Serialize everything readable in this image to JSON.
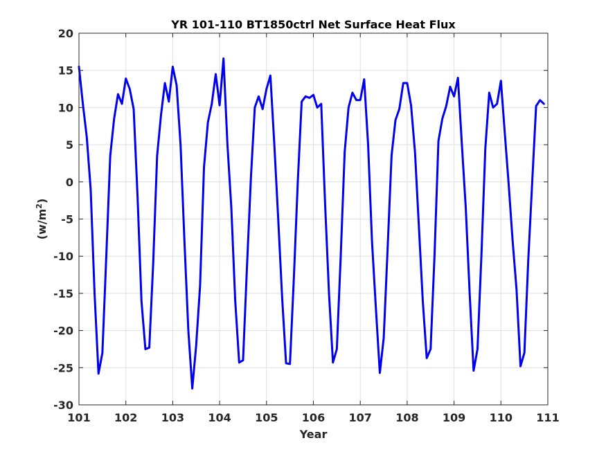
{
  "chart_data": {
    "type": "line",
    "title": "YR 101-110 BT1850ctrl Net Surface Heat Flux",
    "xlabel": "Year",
    "ylabel": "(w/m",
    "ylabel_sup": "2",
    "ylabel_close": ")",
    "xlim": [
      101,
      111
    ],
    "ylim": [
      -30,
      20
    ],
    "xticks": [
      "101",
      "102",
      "103",
      "104",
      "105",
      "106",
      "107",
      "108",
      "109",
      "110",
      "111"
    ],
    "yticks": [
      "20",
      "15",
      "10",
      "5",
      "0",
      "-5",
      "-10",
      "-15",
      "-20",
      "-25",
      "-30"
    ],
    "grid": true,
    "series": [
      {
        "color": "#0000ee",
        "x": [
          101.0,
          101.083,
          101.167,
          101.25,
          101.333,
          101.417,
          101.5,
          101.583,
          101.667,
          101.75,
          101.833,
          101.917,
          102.0,
          102.083,
          102.167,
          102.25,
          102.333,
          102.417,
          102.5,
          102.583,
          102.667,
          102.75,
          102.833,
          102.917,
          103.0,
          103.083,
          103.167,
          103.25,
          103.333,
          103.417,
          103.5,
          103.583,
          103.667,
          103.75,
          103.833,
          103.917,
          104.0,
          104.083,
          104.167,
          104.25,
          104.333,
          104.417,
          104.5,
          104.583,
          104.667,
          104.75,
          104.833,
          104.917,
          105.0,
          105.083,
          105.167,
          105.25,
          105.333,
          105.417,
          105.5,
          105.583,
          105.667,
          105.75,
          105.833,
          105.917,
          106.0,
          106.083,
          106.167,
          106.25,
          106.333,
          106.417,
          106.5,
          106.583,
          106.667,
          106.75,
          106.833,
          106.917,
          107.0,
          107.083,
          107.167,
          107.25,
          107.333,
          107.417,
          107.5,
          107.583,
          107.667,
          107.75,
          107.833,
          107.917,
          108.0,
          108.083,
          108.167,
          108.25,
          108.333,
          108.417,
          108.5,
          108.583,
          108.667,
          108.75,
          108.833,
          108.917,
          109.0,
          109.083,
          109.167,
          109.25,
          109.333,
          109.417,
          109.5,
          109.583,
          109.667,
          109.75,
          109.833,
          109.917,
          110.0,
          110.083,
          110.167,
          110.25,
          110.333,
          110.417,
          110.5,
          110.583,
          110.667,
          110.75,
          110.833,
          110.917
        ],
        "y": [
          15.5,
          10.5,
          6.0,
          -1.0,
          -15.0,
          -25.8,
          -23.0,
          -10.0,
          3.5,
          8.5,
          11.8,
          10.5,
          13.9,
          12.5,
          9.8,
          -2.0,
          -16.0,
          -22.5,
          -22.3,
          -11.0,
          3.5,
          9.0,
          13.3,
          10.8,
          15.5,
          13.0,
          5.0,
          -8.0,
          -20.0,
          -27.8,
          -22.0,
          -14.0,
          2.0,
          8.0,
          10.5,
          14.5,
          10.3,
          16.6,
          5.0,
          -3.5,
          -16.0,
          -24.3,
          -24.0,
          -11.5,
          0.5,
          10.0,
          11.5,
          9.8,
          12.5,
          14.3,
          5.0,
          -5.0,
          -15.5,
          -24.4,
          -24.5,
          -13.0,
          0.0,
          10.8,
          11.5,
          11.3,
          11.7,
          10.0,
          10.5,
          -3.0,
          -15.0,
          -24.3,
          -22.5,
          -10.0,
          4.0,
          10.0,
          12.0,
          11.0,
          11.0,
          13.8,
          5.0,
          -8.0,
          -17.0,
          -25.7,
          -21.0,
          -9.0,
          3.5,
          8.3,
          9.8,
          13.3,
          13.3,
          10.3,
          4.0,
          -6.0,
          -16.0,
          -23.7,
          -22.5,
          -10.0,
          5.5,
          8.5,
          10.2,
          12.8,
          11.5,
          14.0,
          5.0,
          -3.5,
          -15.0,
          -25.4,
          -22.5,
          -10.0,
          4.5,
          12.0,
          10.0,
          10.5,
          13.6,
          6.5,
          -0.5,
          -8.0,
          -14.5,
          -24.8,
          -23.0,
          -10.5,
          0.0,
          10.2,
          11.0,
          10.5
        ]
      }
    ]
  }
}
